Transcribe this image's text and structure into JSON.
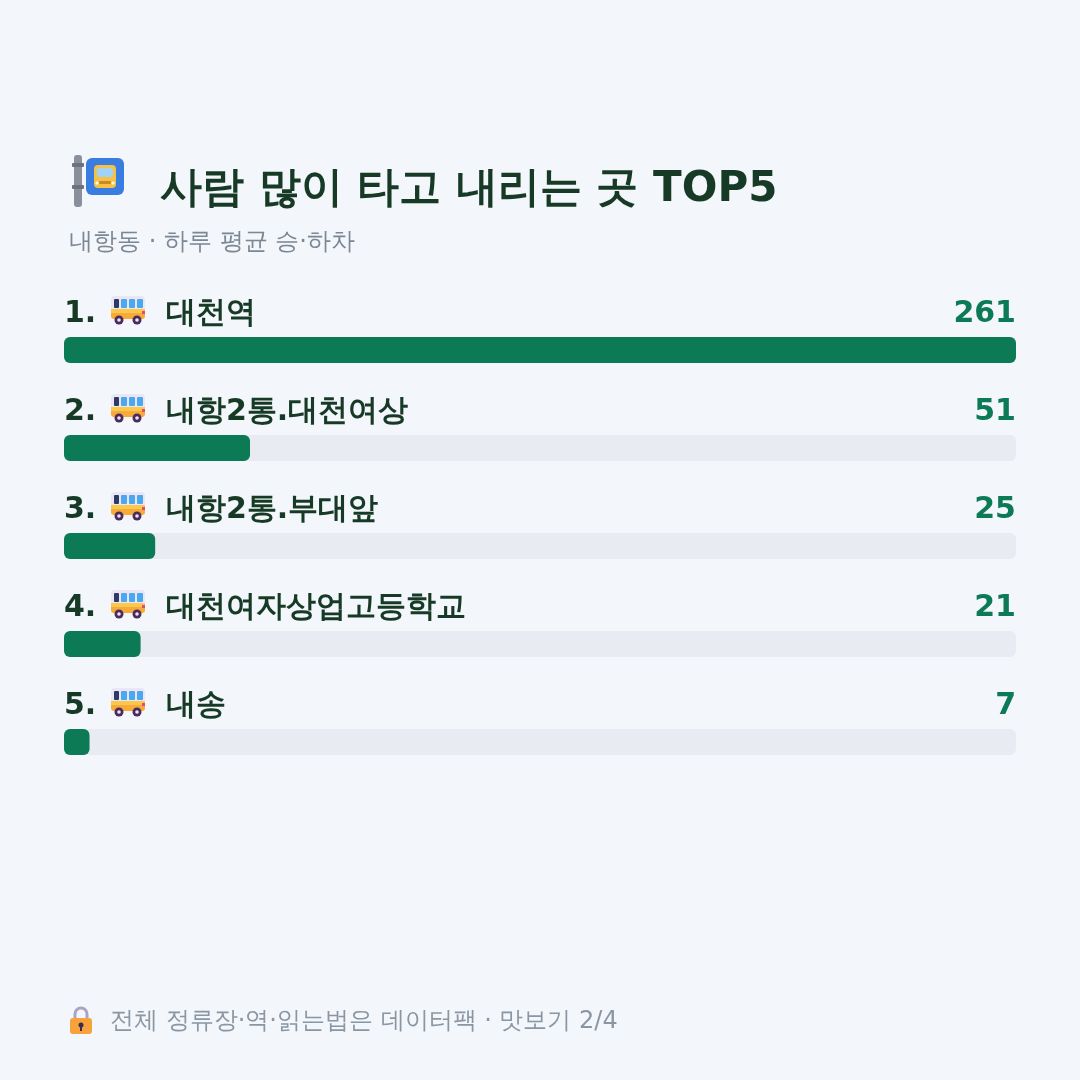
{
  "chart_data": {
    "type": "bar",
    "orientation": "horizontal",
    "title": "사람 많이 타고 내리는 곳 TOP5",
    "subtitle": "내항동 · 하루 평균 승·하차",
    "categories": [
      "1. 대천역",
      "2. 내항2통.대천여상",
      "3. 내항2통.부대앞",
      "4. 대천여자상업고등학교",
      "5. 내송"
    ],
    "values": [
      261,
      51,
      25,
      21,
      7
    ],
    "color": "#0b7a55",
    "data_labels": true,
    "annotations": [
      "전체 정류장·역·읽는법은 데이터팩 · 맛보기 2/4"
    ]
  }
}
